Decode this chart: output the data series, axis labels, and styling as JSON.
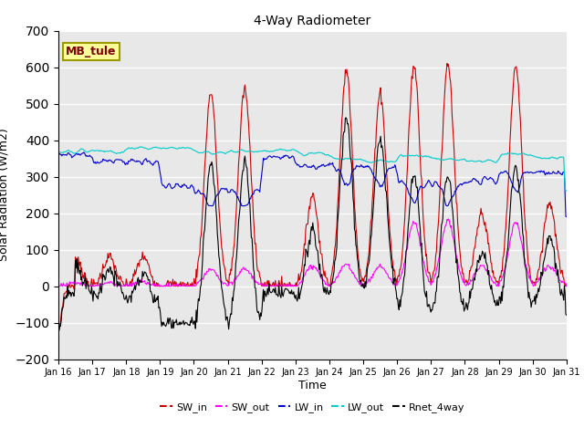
{
  "title": "4-Way Radiometer",
  "xlabel": "Time",
  "ylabel": "Solar Radiation (W/m2)",
  "ylim": [
    -200,
    700
  ],
  "yticks": [
    -200,
    -100,
    0,
    100,
    200,
    300,
    400,
    500,
    600,
    700
  ],
  "station_label": "MB_tule",
  "bg_color": "#e8e8e8",
  "colors": {
    "SW_in": "#cc0000",
    "SW_out": "#ff00ff",
    "LW_in": "#0000cc",
    "LW_out": "#00cccc",
    "Rnet_4way": "#000000"
  },
  "n_points": 720,
  "date_start": 16,
  "date_end": 31,
  "figsize": [
    6.4,
    4.8
  ],
  "dpi": 100
}
